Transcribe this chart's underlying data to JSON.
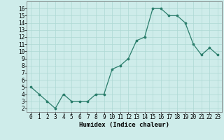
{
  "x": [
    0,
    1,
    2,
    3,
    4,
    5,
    6,
    7,
    8,
    9,
    10,
    11,
    12,
    13,
    14,
    15,
    16,
    17,
    18,
    19,
    20,
    21,
    22,
    23
  ],
  "y": [
    5,
    4,
    3,
    2,
    4,
    3,
    3,
    3,
    4,
    4,
    7.5,
    8,
    9,
    11.5,
    12,
    16,
    16,
    15,
    15,
    14,
    11,
    9.5,
    10.5,
    9.5
  ],
  "xlabel": "Humidex (Indice chaleur)",
  "ylabel": "",
  "xlim": [
    -0.5,
    23.5
  ],
  "ylim": [
    1.5,
    17
  ],
  "xticks": [
    0,
    1,
    2,
    3,
    4,
    5,
    6,
    7,
    8,
    9,
    10,
    11,
    12,
    13,
    14,
    15,
    16,
    17,
    18,
    19,
    20,
    21,
    22,
    23
  ],
  "yticks": [
    2,
    3,
    4,
    5,
    6,
    7,
    8,
    9,
    10,
    11,
    12,
    13,
    14,
    15,
    16
  ],
  "line_color": "#2a7d6b",
  "marker_color": "#2a7d6b",
  "bg_color": "#ceecea",
  "grid_color": "#aed8d4",
  "axis_fontsize": 6.5,
  "tick_fontsize": 5.5
}
